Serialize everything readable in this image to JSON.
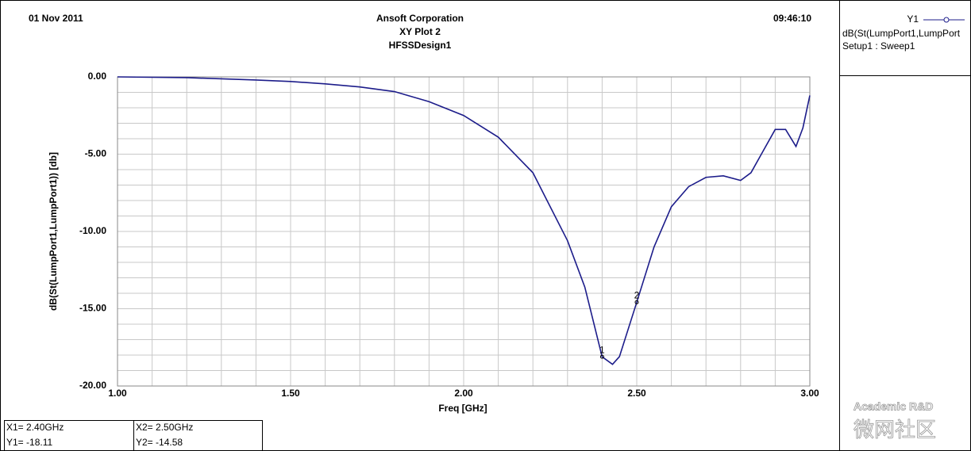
{
  "header": {
    "date": "01 Nov 2011",
    "company": "Ansoft Corporation",
    "plot_name": "XY Plot 2",
    "design": "HFSSDesign1",
    "time": "09:46:10"
  },
  "chart_data": {
    "type": "line",
    "x_label": "Freq [GHz]",
    "y_label": "dB(St(LumpPort1,LumpPort1)) [db]",
    "x": [
      1.0,
      1.2,
      1.4,
      1.5,
      1.6,
      1.7,
      1.8,
      1.9,
      2.0,
      2.1,
      2.2,
      2.3,
      2.35,
      2.4,
      2.43,
      2.45,
      2.5,
      2.55,
      2.6,
      2.65,
      2.7,
      2.75,
      2.8,
      2.83,
      2.86,
      2.9,
      2.93,
      2.96,
      2.98,
      3.0
    ],
    "series": [
      {
        "name": "dB(St(LumpPort1,LumpPort",
        "color": "#1c1c8a",
        "values": [
          0,
          -0.05,
          -0.2,
          -0.3,
          -0.45,
          -0.65,
          -0.95,
          -1.6,
          -2.5,
          -3.9,
          -6.2,
          -10.6,
          -13.6,
          -18.11,
          -18.6,
          -18.1,
          -14.58,
          -11.0,
          -8.4,
          -7.1,
          -6.5,
          -6.4,
          -6.7,
          -6.2,
          -5.0,
          -3.4,
          -3.4,
          -4.5,
          -3.3,
          -1.2
        ]
      }
    ],
    "xlim": [
      1.0,
      3.0
    ],
    "ylim": [
      -20,
      0
    ],
    "xticks": [
      {
        "value": 1.0,
        "label": "1.00"
      },
      {
        "value": 1.5,
        "label": "1.50"
      },
      {
        "value": 2.0,
        "label": "2.00"
      },
      {
        "value": 2.5,
        "label": "2.50"
      },
      {
        "value": 3.0,
        "label": "3.00"
      }
    ],
    "yticks": [
      {
        "value": 0,
        "label": "0.00"
      },
      {
        "value": -5,
        "label": "-5.00"
      },
      {
        "value": -10,
        "label": "-10.00"
      },
      {
        "value": -15,
        "label": "-15.00"
      },
      {
        "value": -20,
        "label": "-20.00"
      }
    ],
    "minor_xticks": [
      1.1,
      1.2,
      1.3,
      1.4,
      1.6,
      1.7,
      1.8,
      1.9,
      2.1,
      2.2,
      2.3,
      2.4,
      2.6,
      2.7,
      2.8,
      2.9
    ],
    "minor_yticks": [
      -1,
      -2,
      -3,
      -4,
      -6,
      -7,
      -8,
      -9,
      -11,
      -12,
      -13,
      -14,
      -16,
      -17,
      -18,
      -19
    ],
    "grid": true,
    "markers": [
      {
        "label": "1",
        "x": 2.4,
        "y": -18.11
      },
      {
        "label": "2",
        "x": 2.5,
        "y": -14.58
      }
    ]
  },
  "legend": {
    "trace": "Y1",
    "setup": "Setup1 : Sweep1"
  },
  "marker_table": [
    [
      "X1= 2.40GHz",
      "Y1= -18.11"
    ],
    [
      "X2= 2.50GHz",
      "Y2= -14.58"
    ]
  ],
  "watermark": {
    "english": "Academic R&D",
    "chinese": "微网社区"
  }
}
